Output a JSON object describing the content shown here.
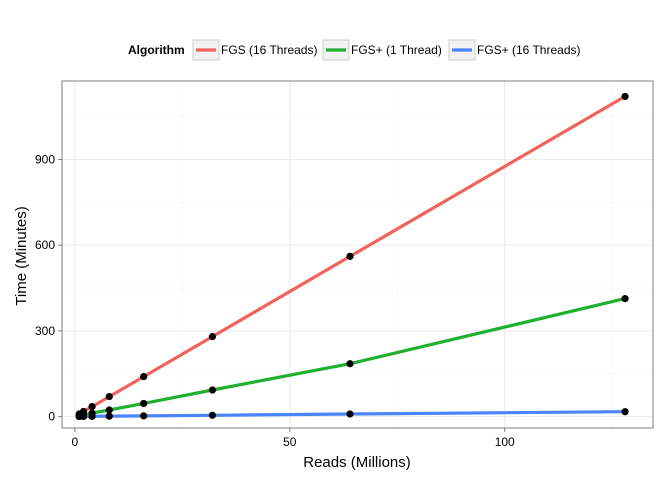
{
  "chart_data": {
    "type": "line",
    "title": "",
    "xlabel": "Reads (Millions)",
    "ylabel": "Time (Minutes)",
    "xlim": [
      -3,
      134.5
    ],
    "ylim": [
      -40,
      1175
    ],
    "x_ticks": [
      0,
      50,
      100
    ],
    "y_ticks": [
      0,
      300,
      600,
      900
    ],
    "grid": true,
    "legend": {
      "title": "Algorithm",
      "position": "top"
    },
    "x": [
      1,
      2,
      4,
      8,
      16,
      32,
      64,
      128
    ],
    "series": [
      {
        "name": "FGS (16 Threads)",
        "color": "#f0625b",
        "values": [
          9,
          18,
          35,
          70,
          140,
          280,
          561,
          1121
        ]
      },
      {
        "name": "FGS+ (1 Thread)",
        "color": "#1fb02f",
        "values": [
          3,
          6,
          12,
          23,
          46,
          93,
          185,
          413
        ]
      },
      {
        "name": "FGS+ (16 Threads)",
        "color": "#4a85ff",
        "values": [
          0.2,
          0.4,
          0.8,
          1.5,
          2.5,
          4.5,
          9,
          17
        ]
      }
    ],
    "point_color": "#000000"
  }
}
